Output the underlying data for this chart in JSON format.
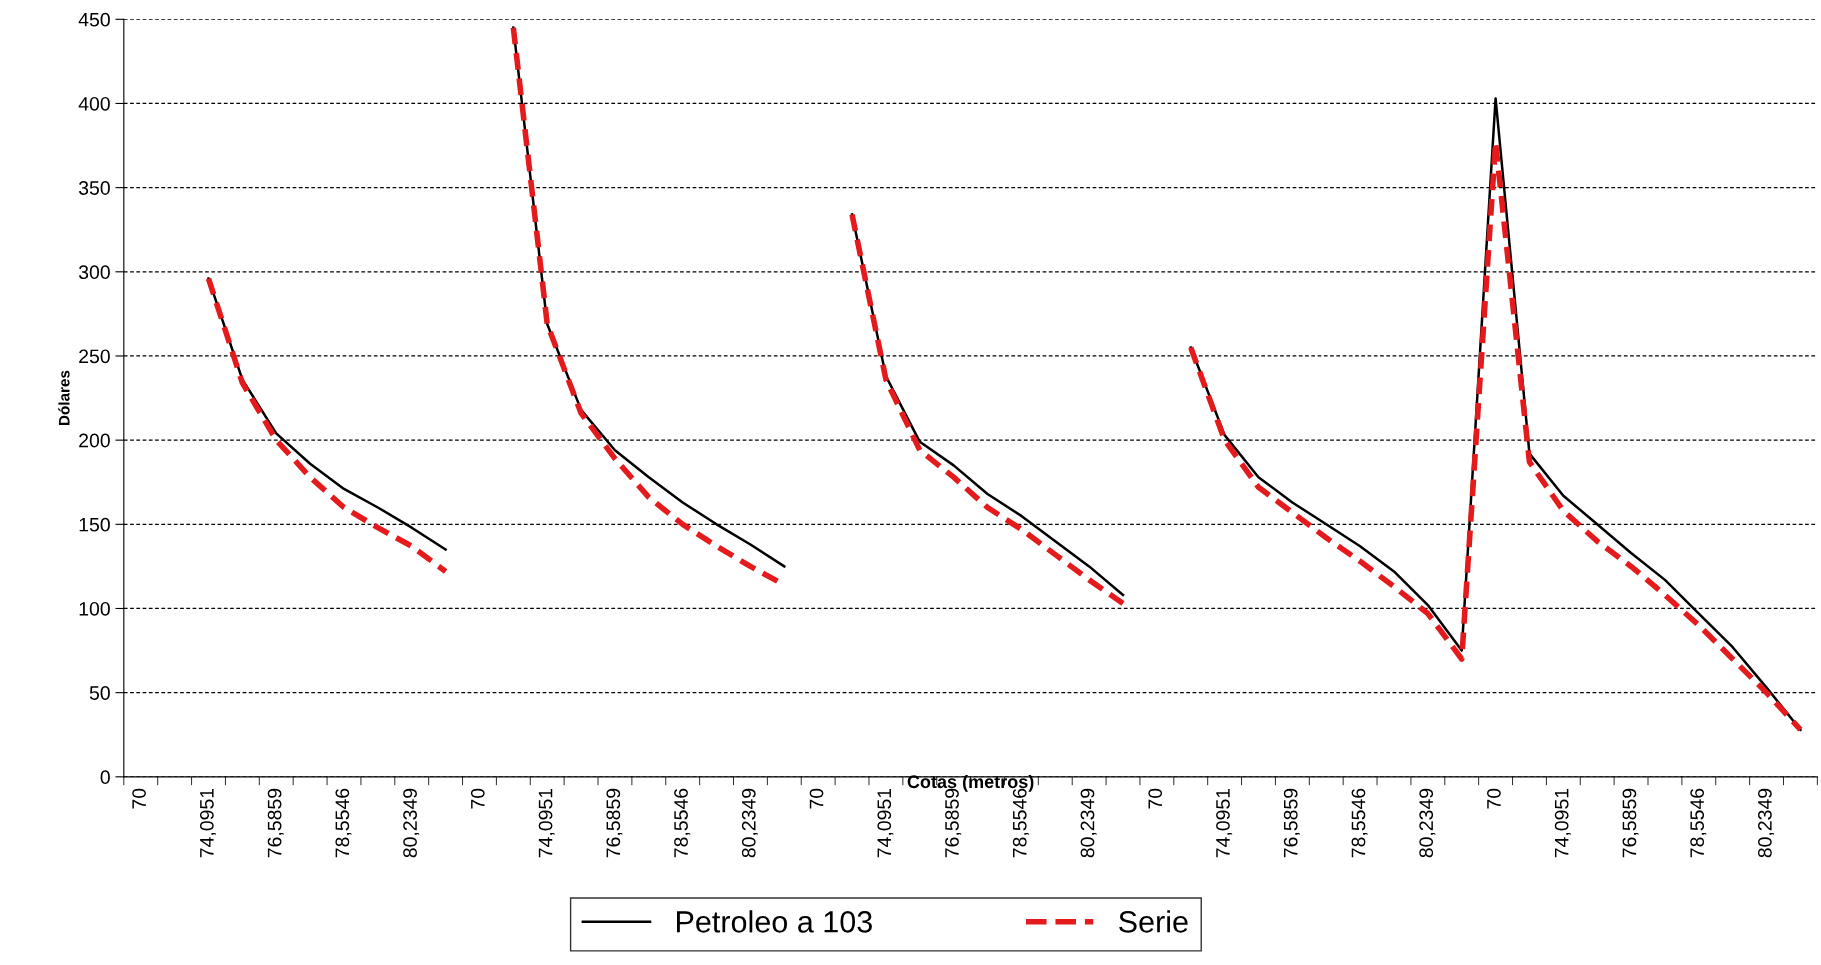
{
  "chart_data": {
    "type": "line",
    "xlabel": "Cotas (metros)",
    "ylabel": "Dólares",
    "categories": [
      "70",
      null,
      "74,0951",
      null,
      "76,5859",
      null,
      "78,5546",
      null,
      "80,2349",
      null,
      "70",
      null,
      "74,0951",
      null,
      "76,5859",
      null,
      "78,5546",
      null,
      "80,2349",
      null,
      "70",
      null,
      "74,0951",
      null,
      "76,5859",
      null,
      "78,5546",
      null,
      "80,2349",
      null,
      "70",
      null,
      "74,0951",
      null,
      "76,5859",
      null,
      "78,5546",
      null,
      "80,2349",
      null,
      "70",
      null,
      "74,0951",
      null,
      "76,5859",
      null,
      "78,5546",
      null,
      "80,2349",
      null
    ],
    "series": [
      {
        "name": "Petroleo a 103",
        "color": "#000000",
        "line_style": "solid",
        "values": [
          null,
          null,
          296,
          236,
          204,
          186,
          171,
          160,
          148,
          135,
          null,
          445,
          269,
          218,
          194,
          178,
          163,
          150,
          138,
          125,
          null,
          334,
          238,
          199,
          185,
          168,
          155,
          140,
          125,
          108,
          null,
          255,
          203,
          178,
          163,
          150,
          137,
          122,
          102,
          75,
          403,
          192,
          167,
          150,
          133,
          117,
          97,
          77,
          53,
          28
        ]
      },
      {
        "name": "Serie",
        "color": "#e41a1c",
        "line_style": "dashed",
        "values": [
          null,
          null,
          296,
          234,
          200,
          178,
          160,
          148,
          137,
          122,
          null,
          445,
          269,
          216,
          189,
          166,
          150,
          137,
          125,
          114,
          null,
          334,
          236,
          194,
          178,
          160,
          147,
          132,
          117,
          103,
          null,
          255,
          200,
          172,
          157,
          142,
          128,
          113,
          97,
          70,
          377,
          187,
          158,
          140,
          125,
          108,
          90,
          70,
          50,
          28
        ]
      }
    ],
    "ylim": [
      0,
      450
    ],
    "yticks": [
      0,
      50,
      100,
      150,
      200,
      250,
      300,
      350,
      400,
      450
    ],
    "grid": "y",
    "legend": "bottom",
    "marker": "none"
  }
}
